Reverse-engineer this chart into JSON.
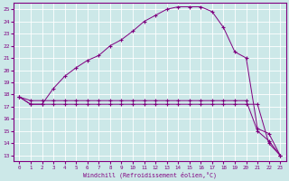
{
  "xlabel": "Windchill (Refroidissement éolien,°C)",
  "bg_color": "#cce8e8",
  "line_color": "#800080",
  "grid_color": "#ffffff",
  "xlim": [
    -0.5,
    23.5
  ],
  "ylim": [
    12.5,
    25.5
  ],
  "yticks": [
    13,
    14,
    15,
    16,
    17,
    18,
    19,
    20,
    21,
    22,
    23,
    24,
    25
  ],
  "xticks": [
    0,
    1,
    2,
    3,
    4,
    5,
    6,
    7,
    8,
    9,
    10,
    11,
    12,
    13,
    14,
    15,
    16,
    17,
    18,
    19,
    20,
    21,
    22,
    23
  ],
  "line1_x": [
    0,
    1,
    2,
    3,
    4,
    5,
    6,
    7,
    8,
    9,
    10,
    11,
    12,
    13,
    14,
    15,
    16,
    17,
    18,
    19,
    20,
    21,
    22,
    23
  ],
  "line1_y": [
    17.8,
    17.5,
    17.5,
    17.5,
    17.5,
    17.5,
    17.5,
    17.5,
    17.5,
    17.5,
    17.5,
    17.5,
    17.5,
    17.5,
    17.5,
    17.5,
    17.5,
    17.5,
    17.5,
    17.5,
    17.5,
    15.0,
    14.2,
    13.0
  ],
  "line2_x": [
    0,
    1,
    2,
    3,
    4,
    5,
    6,
    7,
    8,
    9,
    10,
    11,
    12,
    13,
    14,
    15,
    16,
    17,
    18,
    19,
    20,
    21,
    22,
    23
  ],
  "line2_y": [
    17.8,
    17.2,
    17.2,
    18.5,
    19.5,
    20.2,
    20.8,
    21.2,
    22.0,
    22.5,
    23.2,
    24.0,
    24.5,
    25.0,
    25.2,
    25.2,
    25.2,
    24.8,
    23.5,
    21.5,
    21.0,
    15.2,
    14.8,
    13.0
  ],
  "line3_x": [
    0,
    1,
    2,
    3,
    4,
    5,
    6,
    7,
    8,
    9,
    10,
    11,
    12,
    13,
    14,
    15,
    16,
    17,
    18,
    19,
    20,
    21,
    22,
    23
  ],
  "line3_y": [
    17.8,
    17.2,
    17.2,
    17.2,
    17.2,
    17.2,
    17.2,
    17.2,
    17.2,
    17.2,
    17.2,
    17.2,
    17.2,
    17.2,
    17.2,
    17.2,
    17.2,
    17.2,
    17.2,
    17.2,
    17.2,
    17.2,
    14.0,
    13.0
  ]
}
